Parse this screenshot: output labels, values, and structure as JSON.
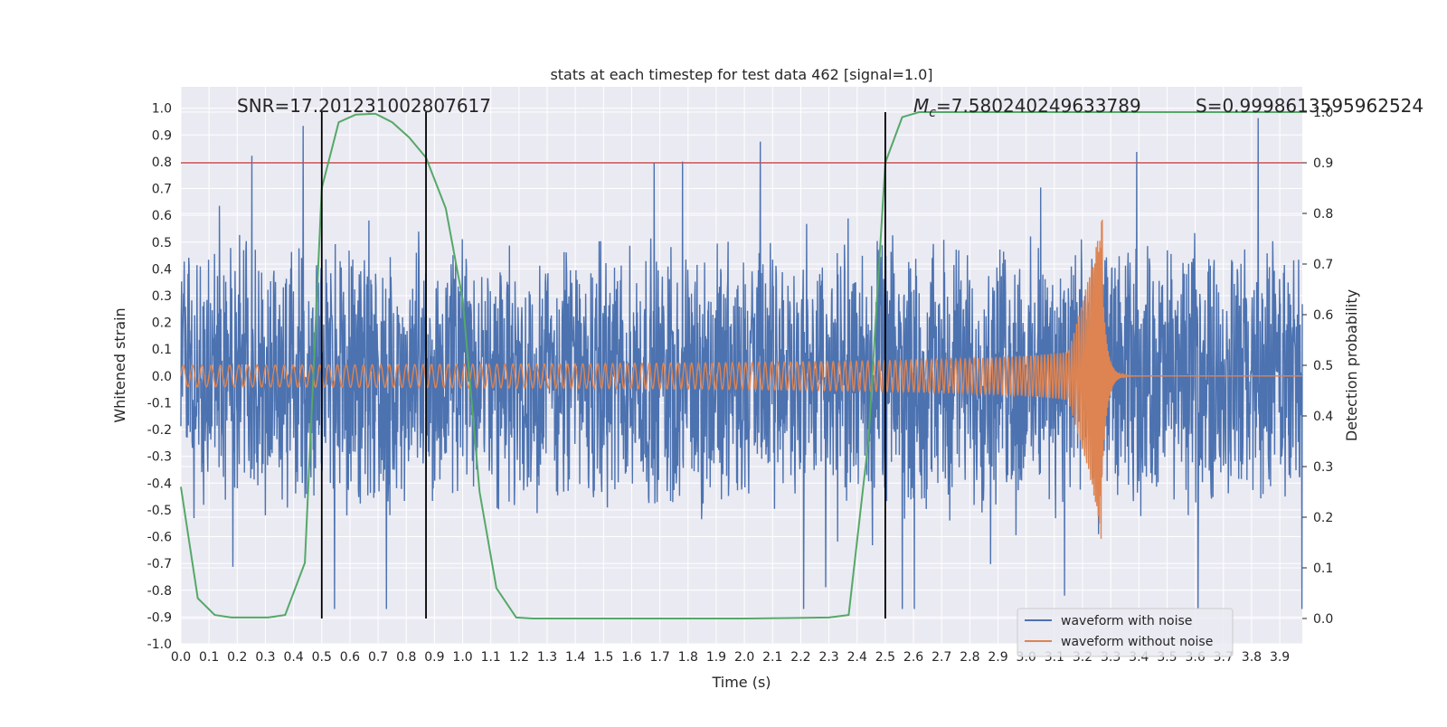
{
  "chart_data": {
    "type": "line",
    "title": "stats at each timestep for test data 462 [signal=1.0]",
    "xlabel": "Time (s)",
    "ylabel": "Whitened strain",
    "ylabel_right": "Detection probability",
    "xlim": [
      0.0,
      3.98
    ],
    "ylim": [
      -1.0,
      1.08
    ],
    "ylim_right": [
      -0.05,
      1.05
    ],
    "x_ticks": [
      "0.0",
      "0.1",
      "0.2",
      "0.3",
      "0.4",
      "0.5",
      "0.6",
      "0.7",
      "0.8",
      "0.9",
      "1.0",
      "1.1",
      "1.2",
      "1.3",
      "1.4",
      "1.5",
      "1.6",
      "1.7",
      "1.8",
      "1.9",
      "2.0",
      "2.1",
      "2.2",
      "2.3",
      "2.4",
      "2.5",
      "2.6",
      "2.7",
      "2.8",
      "2.9",
      "3.0",
      "3.1",
      "3.2",
      "3.3",
      "3.4",
      "3.5",
      "3.6",
      "3.7",
      "3.8",
      "3.9"
    ],
    "y_ticks": [
      "1.0",
      "0.9",
      "0.8",
      "0.7",
      "0.6",
      "0.5",
      "0.4",
      "0.3",
      "0.2",
      "0.1",
      "0.0",
      "-0.1",
      "-0.2",
      "-0.3",
      "-0.4",
      "-0.5",
      "-0.6",
      "-0.7",
      "-0.8",
      "-0.9",
      "-1.0"
    ],
    "y_ticks_right": [
      "1.0",
      "0.9",
      "0.8",
      "0.7",
      "0.6",
      "0.5",
      "0.4",
      "0.3",
      "0.2",
      "0.1",
      "0.0"
    ],
    "grid": true,
    "legend_position": "lower-right",
    "series": [
      {
        "name": "waveform with noise",
        "color": "#4c72b0",
        "axis": "left",
        "envelope_max": 1.0,
        "envelope_min": -0.87
      },
      {
        "name": "waveform without noise",
        "color": "#dd8452",
        "axis": "left",
        "chirp_start_amplitude": 0.04,
        "peak_amplitude": 0.62,
        "merger_time": 3.27
      },
      {
        "name": "",
        "color": "#55a868",
        "axis": "right",
        "x": [
          0.0,
          0.06,
          0.12,
          0.18,
          0.25,
          0.31,
          0.37,
          0.44,
          0.5,
          0.56,
          0.62,
          0.69,
          0.75,
          0.81,
          0.87,
          0.94,
          1.0,
          1.06,
          1.12,
          1.19,
          1.25,
          1.5,
          2.0,
          2.3,
          2.37,
          2.44,
          2.5,
          2.56,
          2.62,
          3.0,
          3.5,
          3.98
        ],
        "y": [
          0.26,
          0.04,
          0.007,
          0.002,
          0.002,
          0.002,
          0.007,
          0.11,
          0.85,
          0.98,
          0.995,
          0.997,
          0.98,
          0.95,
          0.91,
          0.81,
          0.63,
          0.25,
          0.06,
          0.002,
          0.0,
          0.0,
          0.0,
          0.002,
          0.007,
          0.35,
          0.9,
          0.99,
          1.0,
          1.0,
          1.0,
          1.0
        ]
      }
    ],
    "threshold_line": {
      "color": "#c44e52",
      "value_right": 0.9
    },
    "vertical_lines": [
      0.5,
      0.87,
      2.5
    ],
    "annotations": {
      "snr": "SNR=17.201231002807617",
      "mc": "M",
      "mc_sub": "c",
      "mc_value": "=7.580240249633789",
      "s": "S=0.9998613595962524"
    },
    "legend": {
      "items": [
        {
          "label": "waveform with noise",
          "color": "#4c72b0"
        },
        {
          "label": "waveform without noise",
          "color": "#dd8452"
        }
      ]
    }
  }
}
